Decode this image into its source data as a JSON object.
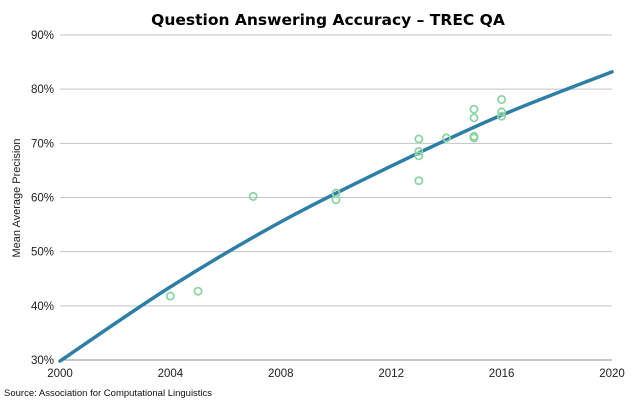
{
  "chart_data": {
    "type": "scatter",
    "title": "Question Answering Accuracy – TREC QA",
    "xlabel": "",
    "ylabel": "Mean Average Precision",
    "xlim": [
      2000,
      2020
    ],
    "ylim": [
      30,
      90
    ],
    "x_ticks": [
      2000,
      2004,
      2008,
      2012,
      2016,
      2020
    ],
    "y_ticks": [
      30,
      40,
      50,
      60,
      70,
      80,
      90
    ],
    "y_tick_labels": [
      "30%",
      "40%",
      "50%",
      "60%",
      "70%",
      "80%",
      "90%"
    ],
    "grid": "horizontal",
    "legend": "none",
    "source": "Source: Association for Computational Linguistics",
    "colors": {
      "points": "#8fd4a6",
      "trend": "#2f7ea6",
      "grid": "#bfc3cc"
    },
    "points": [
      {
        "x": 2004,
        "y": 41.8
      },
      {
        "x": 2005,
        "y": 42.7
      },
      {
        "x": 2007,
        "y": 60.2
      },
      {
        "x": 2010,
        "y": 60.8
      },
      {
        "x": 2010,
        "y": 59.6
      },
      {
        "x": 2013,
        "y": 70.8
      },
      {
        "x": 2013,
        "y": 68.5
      },
      {
        "x": 2013,
        "y": 67.7
      },
      {
        "x": 2013,
        "y": 63.1
      },
      {
        "x": 2014,
        "y": 71.0
      },
      {
        "x": 2015,
        "y": 76.3
      },
      {
        "x": 2015,
        "y": 74.7
      },
      {
        "x": 2015,
        "y": 71.3
      },
      {
        "x": 2015,
        "y": 71.0
      },
      {
        "x": 2016,
        "y": 78.1
      },
      {
        "x": 2016,
        "y": 75.8
      },
      {
        "x": 2016,
        "y": 75.0
      }
    ],
    "trendline": [
      {
        "x": 2000,
        "y": 29.8
      },
      {
        "x": 2004,
        "y": 43.5
      },
      {
        "x": 2008,
        "y": 55.5
      },
      {
        "x": 2012,
        "y": 65.8
      },
      {
        "x": 2016,
        "y": 75.2
      },
      {
        "x": 2020,
        "y": 83.2
      }
    ]
  }
}
